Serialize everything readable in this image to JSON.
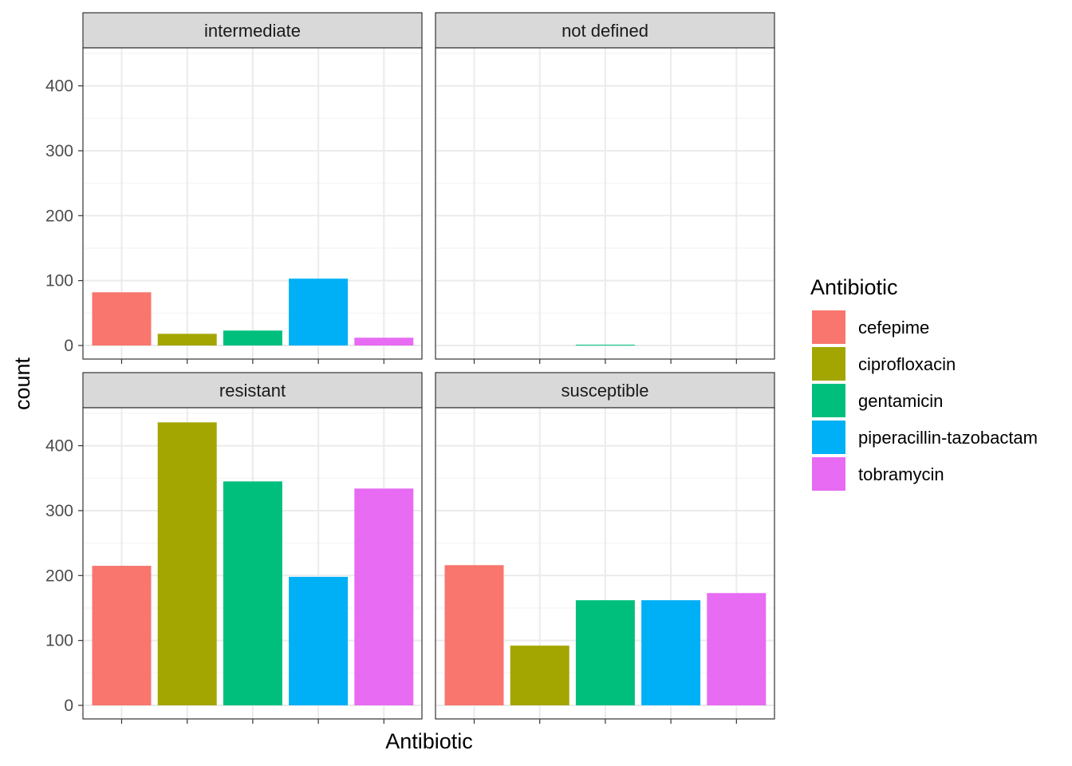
{
  "chart_data": {
    "type": "bar",
    "xlabel": "Antibiotic",
    "ylabel": "count",
    "ylim": [
      0,
      450
    ],
    "yticks": [
      0,
      100,
      200,
      300,
      400
    ],
    "x_tick_labels_shown": false,
    "grid": true,
    "legend": {
      "title": "Antibiotic",
      "position": "right",
      "entries": [
        {
          "name": "cefepime",
          "color": "#F8766D"
        },
        {
          "name": "ciprofloxacin",
          "color": "#A3A500"
        },
        {
          "name": "gentamicin",
          "color": "#00BF7D"
        },
        {
          "name": "piperacillin-tazobactam",
          "color": "#00B0F6"
        },
        {
          "name": "tobramycin",
          "color": "#E76BF3"
        }
      ]
    },
    "categories": [
      "cefepime",
      "ciprofloxacin",
      "gentamicin",
      "piperacillin-tazobactam",
      "tobramycin"
    ],
    "facets": [
      {
        "label": "intermediate",
        "values": [
          82,
          18,
          23,
          103,
          12
        ]
      },
      {
        "label": "not defined",
        "values": [
          0,
          0,
          1,
          0,
          0
        ]
      },
      {
        "label": "resistant",
        "values": [
          215,
          436,
          345,
          198,
          334
        ]
      },
      {
        "label": "susceptible",
        "values": [
          216,
          92,
          162,
          162,
          173
        ]
      }
    ]
  }
}
